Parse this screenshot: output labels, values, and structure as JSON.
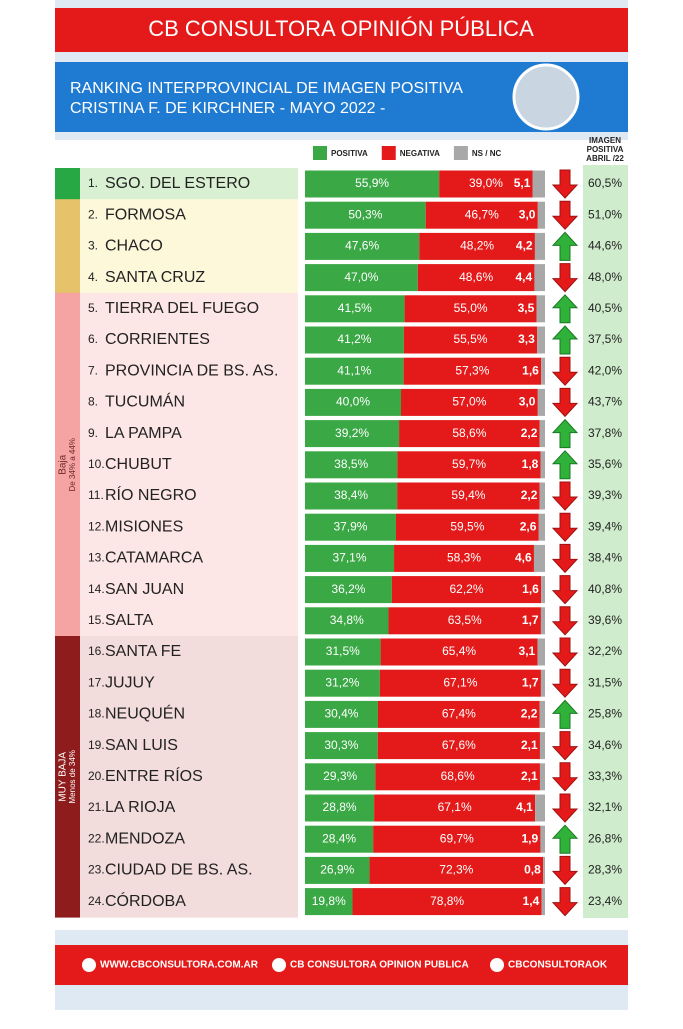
{
  "header": {
    "title": "CB CONSULTORA OPINIÓN PÚBLICA",
    "subtitle_lines": [
      "RANKING INTERPROVINCIAL DE IMAGEN POSITIVA",
      "CRISTINA F. DE KIRCHNER - MAYO 2022 -"
    ]
  },
  "chart_data": {
    "type": "stacked_bar_horizontal",
    "xlim": [
      0,
      100
    ],
    "ranks": [
      "1.",
      "2.",
      "3.",
      "4.",
      "5.",
      "6.",
      "7.",
      "8.",
      "9.",
      "10.",
      "11.",
      "12.",
      "13.",
      "14.",
      "15.",
      "16.",
      "17.",
      "18.",
      "19.",
      "20.",
      "21.",
      "22.",
      "23.",
      "24."
    ],
    "categories": [
      "SGO. DEL ESTERO",
      "FORMOSA",
      "CHACO",
      "SANTA CRUZ",
      "TIERRA DEL FUEGO",
      "CORRIENTES",
      "PROVINCIA DE BS. AS.",
      "TUCUMÁN",
      "LA PAMPA",
      "CHUBUT",
      "RÍO NEGRO",
      "MISIONES",
      "CATAMARCA",
      "SAN JUAN",
      "SALTA",
      "SANTA FE",
      "JUJUY",
      "NEUQUÉN",
      "SAN LUIS",
      "ENTRE RÍOS",
      "LA RIOJA",
      "MENDOZA",
      "CIUDAD DE BS. AS.",
      "CÓRDOBA"
    ],
    "series": [
      {
        "name": "POSITIVA",
        "color": "#3aa845",
        "values": [
          55.9,
          50.3,
          47.6,
          47.0,
          41.5,
          41.2,
          41.1,
          40.0,
          39.2,
          38.5,
          38.4,
          37.9,
          37.1,
          36.2,
          34.8,
          31.5,
          31.2,
          30.4,
          30.3,
          29.3,
          28.8,
          28.4,
          26.9,
          19.8
        ],
        "value_labels": [
          "55,9%",
          "50,3%",
          "47,6%",
          "47,0%",
          "41,5%",
          "41,2%",
          "41,1%",
          "40,0%",
          "39,2%",
          "38,5%",
          "38,4%",
          "37,9%",
          "37,1%",
          "36,2%",
          "34,8%",
          "31,5%",
          "31,2%",
          "30,4%",
          "30,3%",
          "29,3%",
          "28,8%",
          "28,4%",
          "26,9%",
          "19,8%"
        ]
      },
      {
        "name": "NEGATIVA",
        "color": "#e41a1a",
        "values": [
          39.0,
          46.7,
          48.2,
          48.6,
          55.0,
          55.5,
          57.3,
          57.0,
          58.6,
          59.7,
          59.4,
          59.5,
          58.3,
          62.2,
          63.5,
          65.4,
          67.1,
          67.4,
          67.6,
          68.6,
          67.1,
          69.7,
          72.3,
          78.8
        ],
        "value_labels": [
          "39,0%",
          "46,7%",
          "48,2%",
          "48,6%",
          "55,0%",
          "55,5%",
          "57,3%",
          "57,0%",
          "58,6%",
          "59,7%",
          "59,4%",
          "59,5%",
          "58,3%",
          "62,2%",
          "63,5%",
          "65,4%",
          "67,1%",
          "67,4%",
          "67,6%",
          "68,6%",
          "67,1%",
          "69,7%",
          "72,3%",
          "78,8%"
        ]
      },
      {
        "name": "NS / NC",
        "color": "#a8a8a8",
        "values": [
          5.1,
          3.0,
          4.2,
          4.4,
          3.5,
          3.3,
          1.6,
          3.0,
          2.2,
          1.8,
          2.2,
          2.6,
          4.6,
          1.6,
          1.7,
          3.1,
          1.7,
          2.2,
          2.1,
          2.1,
          4.1,
          1.9,
          0.8,
          1.4
        ],
        "value_labels": [
          "5,1",
          "3,0",
          "4,2",
          "4,4",
          "3,5",
          "3,3",
          "1,6",
          "3,0",
          "2,2",
          "1,8",
          "2,2",
          "2,6",
          "4,6",
          "1,6",
          "1,7",
          "3,1",
          "1,7",
          "2,2",
          "2,1",
          "2,1",
          "4,1",
          "1,9",
          "0,8",
          "1,4"
        ]
      }
    ],
    "trend": [
      "down",
      "down",
      "up",
      "down",
      "up",
      "up",
      "down",
      "down",
      "up",
      "up",
      "down",
      "down",
      "down",
      "down",
      "down",
      "down",
      "down",
      "up",
      "down",
      "down",
      "down",
      "up",
      "down",
      "down"
    ],
    "previous": {
      "title_lines": [
        "IMAGEN",
        "POSITIVA",
        "ABRIL /22"
      ],
      "values": [
        60.5,
        51.0,
        44.6,
        48.0,
        40.5,
        37.5,
        42.0,
        43.7,
        37.8,
        35.6,
        39.3,
        39.4,
        38.4,
        40.8,
        39.6,
        32.2,
        31.5,
        25.8,
        34.6,
        33.3,
        32.1,
        26.8,
        28.3,
        23.4
      ],
      "value_labels": [
        "60,5%",
        "51,0%",
        "44,6%",
        "48,0%",
        "40,5%",
        "37,5%",
        "42,0%",
        "43,7%",
        "37,8%",
        "35,6%",
        "39,3%",
        "39,4%",
        "38,4%",
        "40,8%",
        "39,6%",
        "32,2%",
        "31,5%",
        "25,8%",
        "34,6%",
        "33,3%",
        "32,1%",
        "26,8%",
        "28,3%",
        "23,4%"
      ]
    },
    "groups": [
      {
        "size": 1,
        "color": "#27a844",
        "row_color": "#d9f1d2"
      },
      {
        "size": 3,
        "color": "#e6c36a",
        "row_color": "#fdf8da"
      },
      {
        "name": "Baja",
        "note": "De 34% a 44%",
        "size": 11,
        "color": "#f5a3a3",
        "row_color": "#fde6e6"
      },
      {
        "name": "MUY BAJA",
        "note": "Menos de 34%",
        "size": 9,
        "color": "#8e1c1c",
        "row_color": "#f3dcdc"
      }
    ]
  },
  "footer": {
    "items": [
      "WWW.CBCONSULTORA.COM.AR",
      "CB CONSULTORA OPINION PUBLICA",
      "CBCONSULTORAOK"
    ]
  }
}
